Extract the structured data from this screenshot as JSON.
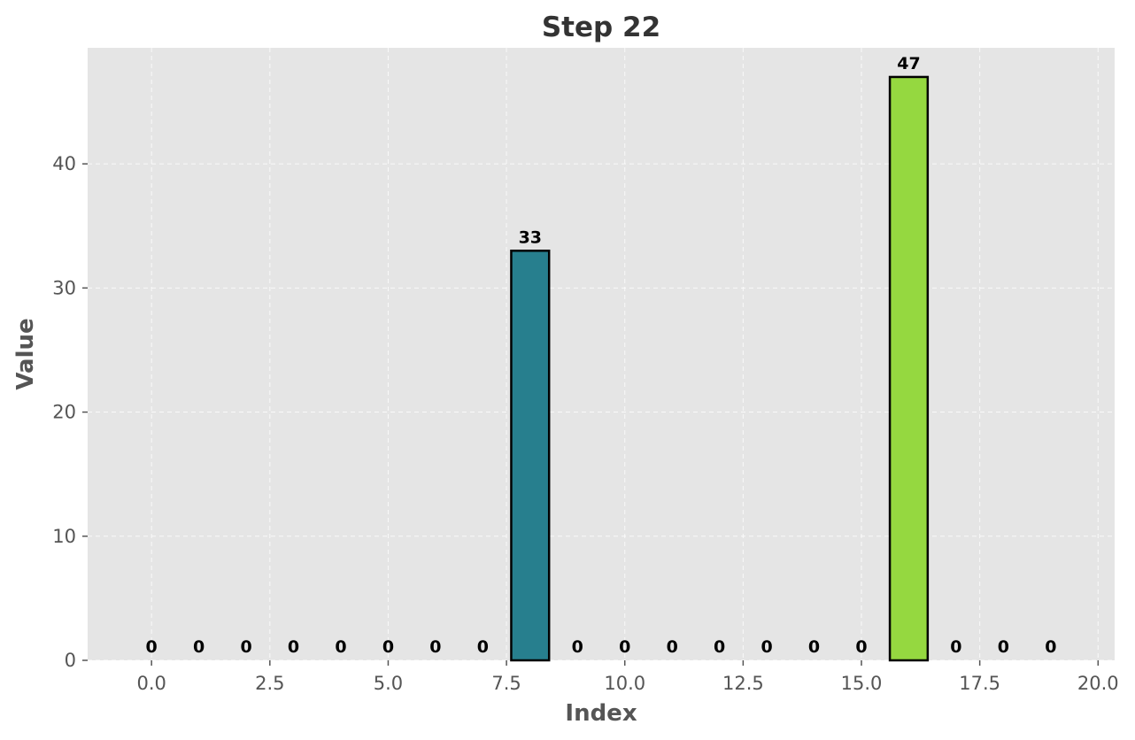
{
  "chart_data": {
    "type": "bar",
    "title": "Step 22",
    "xlabel": "Index",
    "ylabel": "Value",
    "x": [
      0,
      1,
      2,
      3,
      4,
      5,
      6,
      7,
      8,
      9,
      10,
      11,
      12,
      13,
      14,
      15,
      16,
      17,
      18,
      19
    ],
    "values": [
      0,
      0,
      0,
      0,
      0,
      0,
      0,
      0,
      33,
      0,
      0,
      0,
      0,
      0,
      0,
      0,
      47,
      0,
      0,
      0
    ],
    "xlim": [
      -1.35,
      20.35
    ],
    "ylim": [
      0,
      49.35
    ],
    "xticks": [
      0.0,
      2.5,
      5.0,
      7.5,
      10.0,
      12.5,
      15.0,
      17.5,
      20.0
    ],
    "xtick_labels": [
      "0.0",
      "2.5",
      "5.0",
      "7.5",
      "10.0",
      "12.5",
      "15.0",
      "17.5",
      "20.0"
    ],
    "yticks": [
      0,
      10,
      20,
      30,
      40
    ],
    "ytick_labels": [
      "0",
      "10",
      "20",
      "30",
      "40"
    ],
    "grid": true,
    "legend": "none",
    "colors": {
      "background": "#e5e5e5",
      "grid": "#ffffff",
      "bar_default": "#e5e5e5",
      "bar_8": "#277f8e",
      "bar_16": "#95d840",
      "edge": "#000000"
    }
  }
}
